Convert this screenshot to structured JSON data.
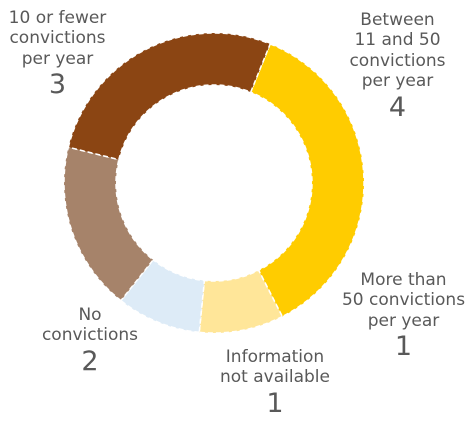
{
  "chart_data": {
    "type": "pie",
    "variant": "donut",
    "slices": [
      {
        "label": "Between\n11 and 50\nconvictions\nper year",
        "value": 4,
        "display": "4",
        "color": "#FFCC00"
      },
      {
        "label": "More than\n50 convictions\nper year",
        "value": 1,
        "display": "1",
        "color": "#FFE699"
      },
      {
        "label": "Information\nnot available",
        "value": 1,
        "display": "1",
        "color": "#DDEBF7"
      },
      {
        "label": "No\nconvictions",
        "value": 2,
        "display": "2",
        "color": "#A6836A"
      },
      {
        "label": "10 or fewer\nconvictions\nper year",
        "value": 3,
        "display": "3",
        "color": "#8B4513"
      }
    ],
    "title": "",
    "legend": "none"
  }
}
